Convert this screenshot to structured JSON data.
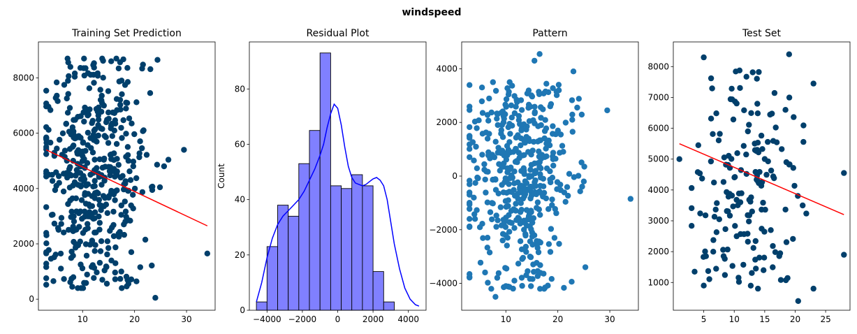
{
  "suptitle": "windspeed",
  "colors": {
    "dark_points": "#003f6b",
    "light_points": "#1f77b4",
    "fit_line": "#ff0000",
    "hist_fill": "#8080ff",
    "hist_edge": "#000000",
    "kde_line": "#0000ff"
  },
  "chart_data": [
    {
      "type": "scatter",
      "title": "Training Set Prediction",
      "xlim": [
        1.5,
        35.5
      ],
      "ylim": [
        -400,
        9300
      ],
      "xticks": [
        10,
        20,
        30
      ],
      "yticks": [
        0,
        2000,
        4000,
        6000,
        8000
      ],
      "point_color": "#003f6b",
      "cloud": {
        "count": 460,
        "x_range": [
          3,
          29
        ],
        "y_range": [
          400,
          8700
        ],
        "x_center": 12,
        "y_center": 4500,
        "seed": 11
      },
      "points": [
        {
          "x": 16.5,
          "y": 8700
        },
        {
          "x": 15.5,
          "y": 8600
        },
        {
          "x": 34,
          "y": 1650
        },
        {
          "x": 24,
          "y": 50
        },
        {
          "x": 29.5,
          "y": 5400
        },
        {
          "x": 3,
          "y": 1700
        },
        {
          "x": 8,
          "y": 450
        },
        {
          "x": 23,
          "y": 7450
        }
      ],
      "fit_line": {
        "x": [
          3,
          34
        ],
        "y": [
          5400,
          2650
        ]
      }
    },
    {
      "type": "bar",
      "title": "Residual Plot",
      "ylabel": "Count",
      "xlim": [
        -5000,
        5000
      ],
      "ylim": [
        0,
        97
      ],
      "xticks": [
        -4000,
        -2000,
        0,
        2000,
        4000
      ],
      "yticks": [
        0,
        20,
        40,
        60,
        80
      ],
      "bins": [
        {
          "x0": -4600,
          "x1": -4000,
          "count": 3
        },
        {
          "x0": -4000,
          "x1": -3400,
          "count": 23
        },
        {
          "x0": -3400,
          "x1": -2800,
          "count": 38
        },
        {
          "x0": -2800,
          "x1": -2200,
          "count": 34
        },
        {
          "x0": -2200,
          "x1": -1600,
          "count": 53
        },
        {
          "x0": -1600,
          "x1": -1000,
          "count": 65
        },
        {
          "x0": -1000,
          "x1": -400,
          "count": 93
        },
        {
          "x0": -400,
          "x1": 200,
          "count": 45
        },
        {
          "x0": 200,
          "x1": 800,
          "count": 44
        },
        {
          "x0": 800,
          "x1": 1400,
          "count": 49
        },
        {
          "x0": 1400,
          "x1": 2000,
          "count": 45
        },
        {
          "x0": 2000,
          "x1": 2600,
          "count": 14
        },
        {
          "x0": 2600,
          "x1": 3200,
          "count": 3
        }
      ],
      "kde": {
        "x": [
          -4600,
          -4300,
          -4000,
          -3700,
          -3400,
          -3100,
          -2800,
          -2500,
          -2200,
          -1900,
          -1600,
          -1300,
          -1000,
          -800,
          -600,
          -400,
          -200,
          0,
          200,
          400,
          600,
          800,
          1000,
          1200,
          1400,
          1600,
          1800,
          2000,
          2200,
          2400,
          2600,
          2800,
          3000,
          3200,
          3500,
          3800,
          4100,
          4400,
          4600
        ],
        "y": [
          3,
          10,
          19,
          26,
          31,
          34,
          36,
          38,
          40,
          43,
          47,
          51,
          56,
          60,
          66,
          71,
          74.5,
          73,
          67,
          59,
          52,
          48,
          46,
          45.5,
          45,
          45.5,
          46.5,
          47.5,
          48,
          47,
          45,
          40,
          32,
          24,
          15,
          8,
          4,
          2,
          1.5
        ]
      }
    },
    {
      "type": "scatter",
      "title": "Pattern",
      "xlim": [
        1.5,
        35.5
      ],
      "ylim": [
        -5000,
        5000
      ],
      "xticks": [
        10,
        20,
        30
      ],
      "yticks": [
        -4000,
        -2000,
        0,
        2000,
        4000
      ],
      "point_color": "#1f77b4",
      "cloud": {
        "count": 460,
        "x_range": [
          3,
          29
        ],
        "y_range": [
          -4200,
          3500
        ],
        "x_center": 12,
        "y_center": 0,
        "seed": 23
      },
      "points": [
        {
          "x": 16.5,
          "y": 4550
        },
        {
          "x": 15.5,
          "y": 4300
        },
        {
          "x": 34,
          "y": -850
        },
        {
          "x": 8,
          "y": -4500
        },
        {
          "x": 29.5,
          "y": 2450
        },
        {
          "x": 23,
          "y": 3900
        },
        {
          "x": 10,
          "y": -4100
        },
        {
          "x": 3,
          "y": -3650
        }
      ]
    },
    {
      "type": "scatter",
      "title": "Test Set",
      "xlim": [
        0,
        29
      ],
      "ylim": [
        100,
        8800
      ],
      "xticks": [
        5,
        10,
        15,
        20,
        25
      ],
      "yticks": [
        1000,
        2000,
        3000,
        4000,
        5000,
        6000,
        7000,
        8000
      ],
      "point_color": "#003f6b",
      "cloud": {
        "count": 170,
        "x_range": [
          3,
          25
        ],
        "y_range": [
          800,
          8000
        ],
        "x_center": 12,
        "y_center": 4500,
        "seed": 37
      },
      "points": [
        {
          "x": 19,
          "y": 8400
        },
        {
          "x": 5,
          "y": 8300
        },
        {
          "x": 1,
          "y": 5000
        },
        {
          "x": 28,
          "y": 1900
        },
        {
          "x": 28,
          "y": 4550
        },
        {
          "x": 20.5,
          "y": 400
        },
        {
          "x": 23,
          "y": 7450
        },
        {
          "x": 3.5,
          "y": 1350
        },
        {
          "x": 5,
          "y": 900
        },
        {
          "x": 23,
          "y": 800
        }
      ],
      "fit_line": {
        "x": [
          1,
          28
        ],
        "y": [
          5500,
          3200
        ]
      }
    }
  ]
}
